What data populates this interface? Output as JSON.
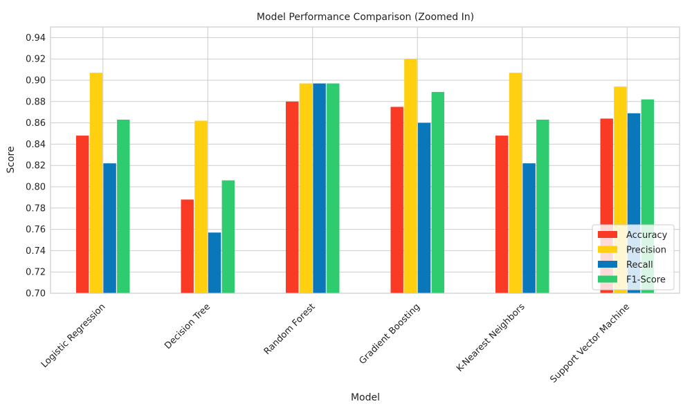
{
  "chart_data": {
    "type": "bar",
    "title": "Model Performance Comparison (Zoomed In)",
    "xlabel": "Model",
    "ylabel": "Score",
    "ylim": [
      0.7,
      0.95
    ],
    "yticks": [
      0.7,
      0.72,
      0.74,
      0.76,
      0.78,
      0.8,
      0.82,
      0.84,
      0.86,
      0.88,
      0.9,
      0.92,
      0.94
    ],
    "grid": true,
    "legend_position": "bottom-right",
    "categories": [
      "Logistic Regression",
      "Decision Tree",
      "Random Forest",
      "Gradient Boosting",
      "K-Nearest Neighbors",
      "Support Vector Machine"
    ],
    "series": [
      {
        "name": "Accuracy",
        "color": "#f93a24",
        "values": [
          0.848,
          0.788,
          0.88,
          0.875,
          0.848,
          0.864
        ]
      },
      {
        "name": "Precision",
        "color": "#fed00f",
        "values": [
          0.907,
          0.862,
          0.897,
          0.92,
          0.907,
          0.894
        ]
      },
      {
        "name": "Recall",
        "color": "#0a77bb",
        "values": [
          0.822,
          0.757,
          0.897,
          0.86,
          0.822,
          0.869
        ]
      },
      {
        "name": "F1-Score",
        "color": "#2fcb6f",
        "values": [
          0.863,
          0.806,
          0.897,
          0.889,
          0.863,
          0.882
        ]
      }
    ]
  }
}
